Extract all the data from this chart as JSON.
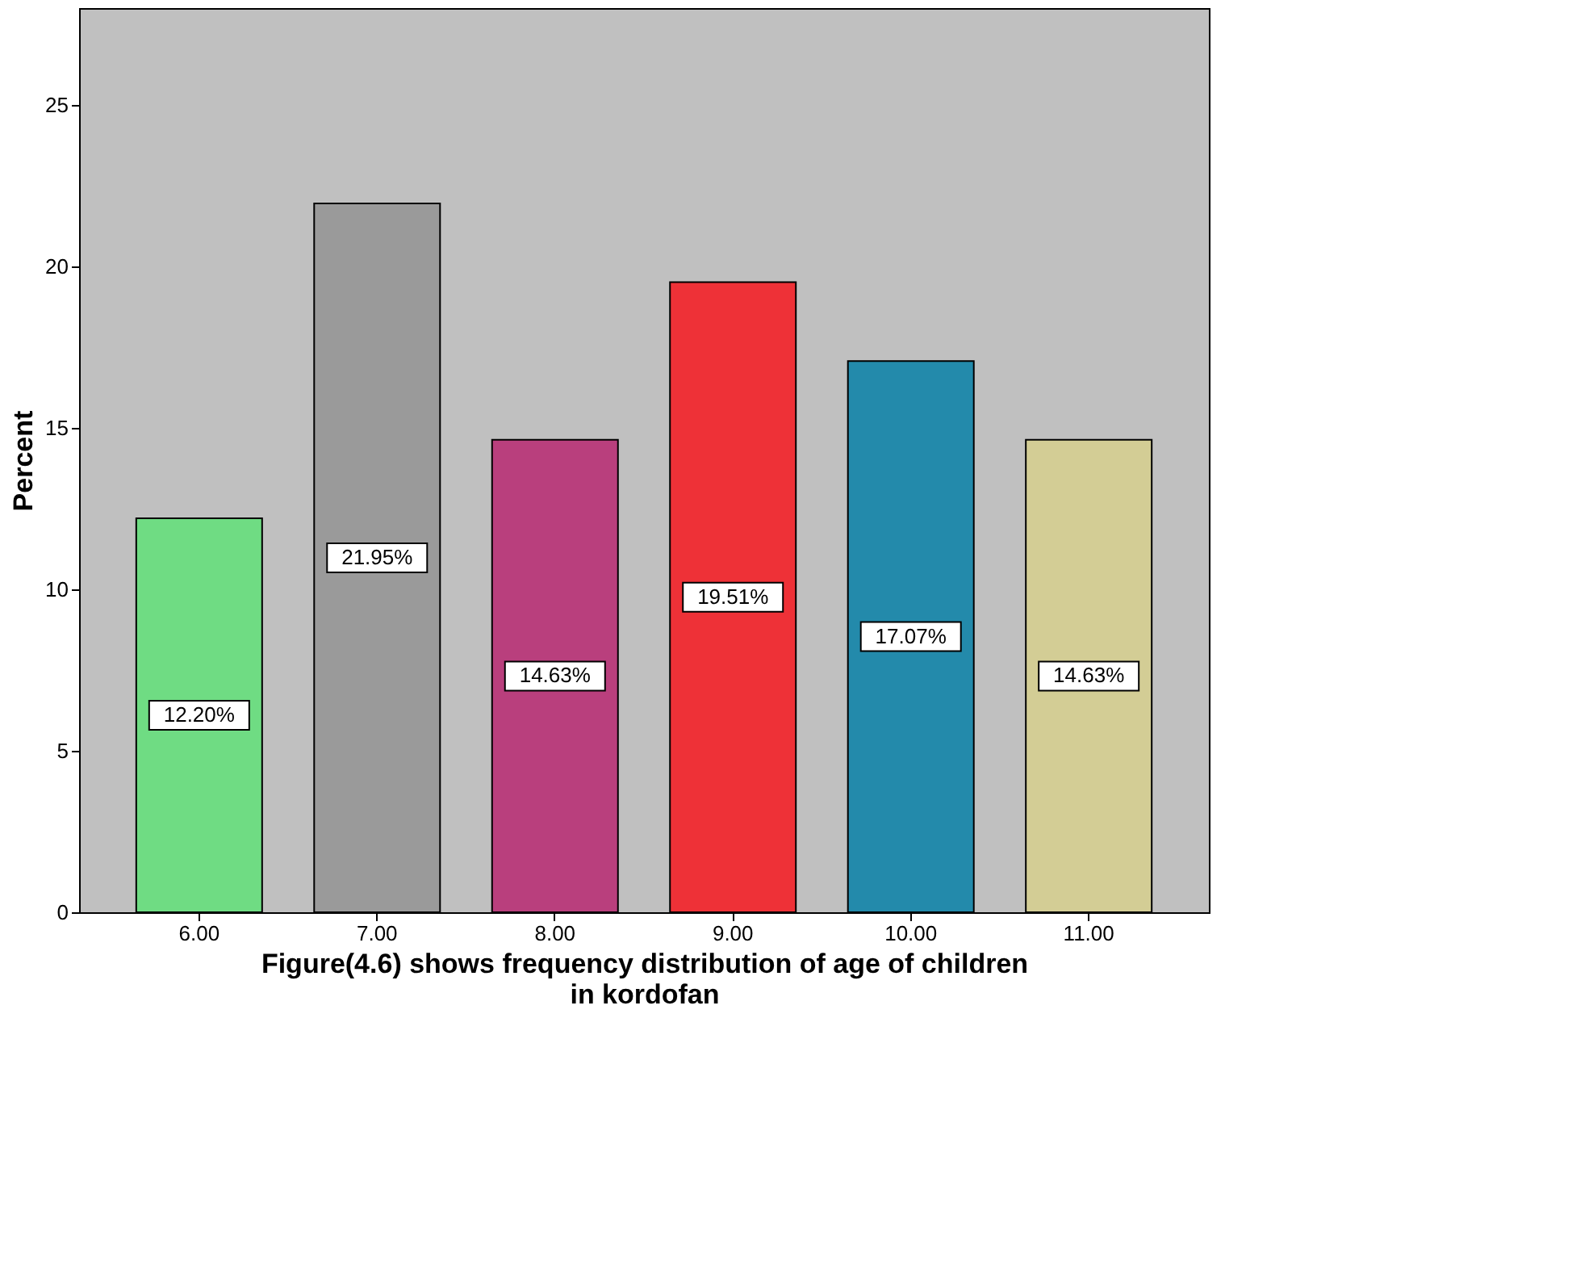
{
  "chart_data": {
    "type": "bar",
    "categories": [
      "6.00",
      "7.00",
      "8.00",
      "9.00",
      "10.00",
      "11.00"
    ],
    "values": [
      12.2,
      21.95,
      14.63,
      19.51,
      17.07,
      14.63
    ],
    "colors": [
      "#6fdc83",
      "#9a9a9a",
      "#b93f7d",
      "#ee3137",
      "#238aab",
      "#d3cd95"
    ],
    "value_labels": [
      "12.20%",
      "21.95%",
      "14.63%",
      "19.51%",
      "17.07%",
      "14.63%"
    ],
    "ylabel": "Percent",
    "xlabel": "Figure(4.6) shows frequency distribution of age of children\nin kordofan",
    "ylim": [
      0,
      28
    ],
    "yticks": [
      0,
      5,
      10,
      15,
      20,
      25
    ],
    "grid": false
  }
}
